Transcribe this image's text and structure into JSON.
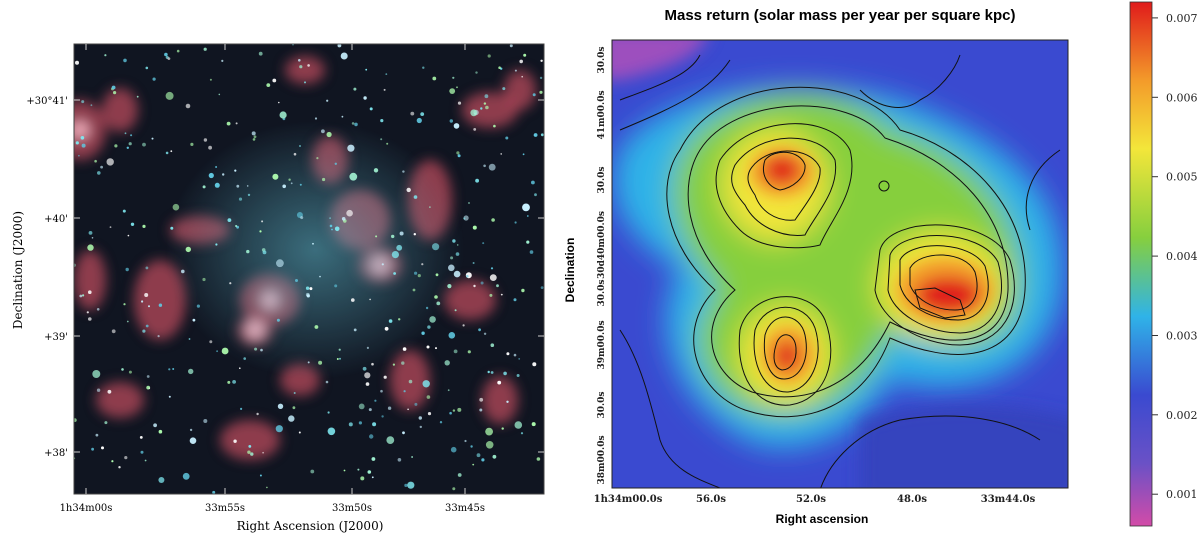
{
  "left_panel": {
    "ylabel": "Declination (J2000)",
    "xlabel": "Right Ascension (J2000)",
    "y_ticks": [
      "+30°41'",
      "+40'",
      "+39'",
      "+38'"
    ],
    "x_ticks": [
      "1h34m00s",
      "33m55s",
      "33m50s",
      "33m45s"
    ]
  },
  "right_panel": {
    "title": "Mass return      (solar mass per year per square kpc)",
    "ylabel": "Declination",
    "xlabel": "Right ascension",
    "y_ticks": [
      "30.0s",
      "41m00.0s",
      "30.0s",
      "30d40m00.0s",
      "30.0s",
      "39m00.0s",
      "30.0s",
      "38m00.0s"
    ],
    "x_ticks": [
      "1h34m00.0s",
      "56.0s",
      "52.0s",
      "48.0s",
      "33m44.0s"
    ]
  },
  "colorbar": {
    "ticks": [
      "0.007",
      "0.006",
      "0.005",
      "0.004",
      "0.003",
      "0.002",
      "0.001"
    ],
    "colors": [
      "#d34ba8",
      "#6a51c6",
      "#3a4ad0",
      "#2fb3e8",
      "#86cf3e",
      "#f3e63a",
      "#f39b2a",
      "#e01b1b"
    ]
  },
  "chart_data": [
    {
      "type": "heatmap",
      "title": "",
      "xlabel": "Right Ascension (J2000)",
      "ylabel": "Declination (J2000)",
      "x_ticks": [
        "1h34m00s",
        "33m55s",
        "33m50s",
        "33m45s"
      ],
      "y_ticks": [
        "+30°41'",
        "+40'",
        "+39'",
        "+38'"
      ],
      "note_colors": {
        "diffuse_emission": "#c8505a",
        "stars": "#7fe8f0"
      }
    },
    {
      "type": "heatmap",
      "title": "Mass return      (solar mass per year per square kpc)",
      "xlabel": "Right ascension",
      "ylabel": "Declination",
      "x_ticks": [
        "1h34m00.0s",
        "56.0s",
        "52.0s",
        "48.0s",
        "33m44.0s"
      ],
      "y_ticks": [
        "30.0s",
        "41m00.0s",
        "30.0s",
        "30d40m00.0s",
        "30.0s",
        "39m00.0s",
        "30.0s",
        "38m00.0s"
      ],
      "colorbar_range": [
        0.0006,
        0.0072
      ],
      "colorbar_ticks": [
        0.001,
        0.002,
        0.003,
        0.004,
        0.005,
        0.006,
        0.007
      ],
      "peaks": [
        {
          "ra": "≈ 52.5s",
          "dec": "≈ 30d40m30s",
          "value": 0.0068
        },
        {
          "ra": "≈ 46.0s",
          "dec": "≈ 30d39m40s",
          "value": 0.0072
        },
        {
          "ra": "≈ 52.7s",
          "dec": "≈ 30d39m00s",
          "value": 0.0066
        }
      ],
      "background_value": 0.0025,
      "contours": true
    }
  ]
}
